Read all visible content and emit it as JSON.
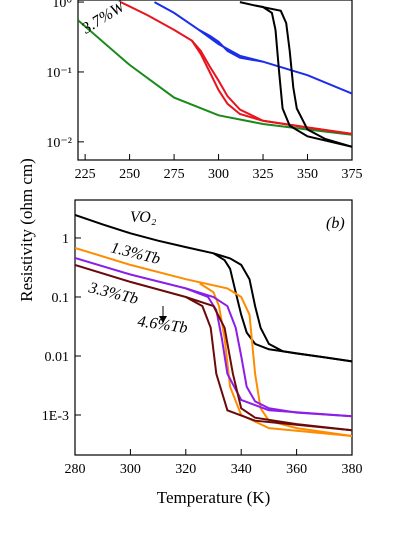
{
  "chart_data": [
    {
      "type": "line",
      "log_y": true,
      "xlim": [
        221,
        375
      ],
      "ylim": [
        0.0055,
        1.07
      ],
      "xticks": [
        225,
        250,
        275,
        300,
        325,
        350,
        375
      ],
      "yticks": [
        {
          "value": 1,
          "label": "10⁰"
        },
        {
          "value": 0.1,
          "label": "10⁻¹"
        },
        {
          "value": 0.01,
          "label": "10⁻²"
        }
      ],
      "annotations": [
        "3.7%W"
      ],
      "series": [
        {
          "color": "#1a8a1a",
          "x": [
            221,
            250,
            275,
            300,
            325,
            350,
            375
          ],
          "values": [
            0.55,
            0.126,
            0.043,
            0.024,
            0.018,
            0.015,
            0.0126
          ]
        },
        {
          "color": "#e8141e",
          "x": [
            245,
            260,
            275,
            285,
            290,
            295,
            300,
            305,
            312,
            325,
            350,
            375
          ],
          "values": [
            1.0,
            0.65,
            0.4,
            0.28,
            0.2,
            0.12,
            0.075,
            0.045,
            0.029,
            0.02,
            0.016,
            0.013
          ]
        },
        {
          "color": "#e8141e",
          "x": [
            285,
            290,
            295,
            300,
            305,
            312,
            325,
            375
          ],
          "values": [
            0.28,
            0.18,
            0.1,
            0.055,
            0.035,
            0.025,
            0.02,
            0.013
          ]
        },
        {
          "color": "#1c2ee8",
          "x": [
            264,
            275,
            289,
            300,
            312,
            325,
            350,
            375
          ],
          "values": [
            1.0,
            0.7,
            0.4,
            0.25,
            0.17,
            0.14,
            0.09,
            0.049
          ]
        },
        {
          "color": "#1c2ee8",
          "x": [
            289,
            295,
            300,
            305,
            312,
            325
          ],
          "values": [
            0.4,
            0.33,
            0.27,
            0.2,
            0.16,
            0.14
          ]
        },
        {
          "color": "#000000",
          "x": [
            312,
            320,
            335,
            338,
            340,
            342,
            344,
            350,
            360,
            375
          ],
          "values": [
            1.0,
            0.9,
            0.75,
            0.5,
            0.2,
            0.06,
            0.03,
            0.015,
            0.011,
            0.0085
          ]
        },
        {
          "color": "#000000",
          "x": [
            320,
            325,
            330,
            332,
            334,
            336,
            340,
            350,
            375
          ],
          "values": [
            0.9,
            0.85,
            0.7,
            0.4,
            0.1,
            0.03,
            0.017,
            0.012,
            0.0085
          ]
        }
      ]
    },
    {
      "type": "line",
      "log_y": true,
      "xlim": [
        280,
        380
      ],
      "ylim": [
        0.00021,
        4.4
      ],
      "xticks": [
        280,
        300,
        320,
        340,
        360,
        380
      ],
      "yticks": [
        1,
        0.1,
        0.01,
        {
          "value": 0.001,
          "label": "1E-3"
        }
      ],
      "xlabel": "Temperature (K)",
      "ylabel": "Resistivity (ohm cm)",
      "annotations": [
        "VO₂",
        "1.3%Tb",
        "3.3%Tb",
        "4.6%Tb",
        "(b)"
      ],
      "series": [
        {
          "color": "#000000",
          "x": [
            280,
            290,
            300,
            310,
            320,
            330,
            336,
            340,
            343,
            345,
            347,
            350,
            355,
            360,
            370,
            380
          ],
          "values": [
            2.45,
            1.7,
            1.2,
            0.9,
            0.7,
            0.55,
            0.45,
            0.35,
            0.2,
            0.07,
            0.03,
            0.016,
            0.012,
            0.011,
            0.0095,
            0.0081
          ]
        },
        {
          "color": "#000000",
          "x": [
            330,
            334,
            336,
            338,
            340,
            342,
            345,
            350,
            380
          ],
          "values": [
            0.55,
            0.42,
            0.3,
            0.12,
            0.05,
            0.025,
            0.016,
            0.013,
            0.0081
          ]
        },
        {
          "color": "#ff8c00",
          "x": [
            280,
            300,
            320,
            335,
            340,
            343,
            345,
            347,
            350,
            360,
            380
          ],
          "values": [
            0.68,
            0.35,
            0.2,
            0.14,
            0.1,
            0.05,
            0.005,
            0.0013,
            0.0008,
            0.0006,
            0.00044
          ]
        },
        {
          "color": "#ff8c00",
          "x": [
            325,
            330,
            332,
            334,
            336,
            340,
            350,
            380
          ],
          "values": [
            0.17,
            0.12,
            0.07,
            0.02,
            0.003,
            0.001,
            0.0006,
            0.00044
          ]
        },
        {
          "color": "#8b1ee8",
          "x": [
            280,
            300,
            320,
            330,
            335,
            338,
            340,
            342,
            345,
            350,
            360,
            380
          ],
          "values": [
            0.46,
            0.24,
            0.14,
            0.1,
            0.07,
            0.03,
            0.01,
            0.003,
            0.0017,
            0.0013,
            0.0011,
            0.00095
          ]
        },
        {
          "color": "#8b1ee8",
          "x": [
            320,
            328,
            331,
            333,
            335,
            340,
            350,
            380
          ],
          "values": [
            0.14,
            0.1,
            0.06,
            0.02,
            0.005,
            0.0018,
            0.0012,
            0.00095
          ]
        },
        {
          "color": "#6b0a0a",
          "x": [
            280,
            300,
            320,
            330,
            334,
            337,
            340,
            345,
            360,
            380
          ],
          "values": [
            0.35,
            0.18,
            0.1,
            0.07,
            0.03,
            0.005,
            0.0013,
            0.0009,
            0.0007,
            0.00055
          ]
        },
        {
          "color": "#6b0a0a",
          "x": [
            320,
            326,
            329,
            331,
            335,
            345,
            380
          ],
          "values": [
            0.1,
            0.07,
            0.03,
            0.005,
            0.0012,
            0.0008,
            0.00055
          ]
        }
      ]
    }
  ]
}
